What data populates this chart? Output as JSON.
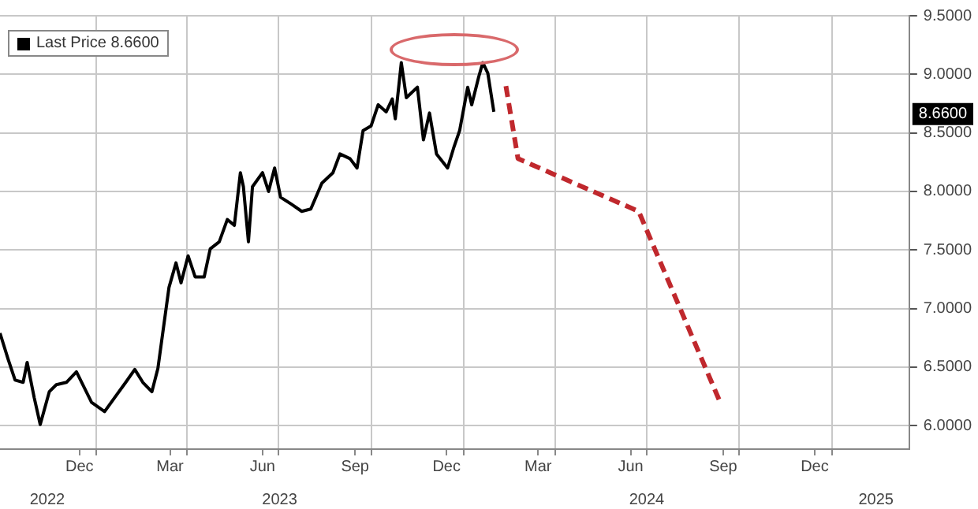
{
  "chart_data": {
    "type": "line",
    "xlim": [
      "2022-09-27",
      "2025-03-19"
    ],
    "xticks": [
      {
        "value": "2022-12-15",
        "label": "Dec"
      },
      {
        "value": "2023-01-01",
        "label": null
      },
      {
        "value": "2023-03-15",
        "label": "Mar"
      },
      {
        "value": "2023-04-01",
        "label": null
      },
      {
        "value": "2023-06-15",
        "label": "Jun"
      },
      {
        "value": "2023-07-01",
        "label": null
      },
      {
        "value": "2023-09-15",
        "label": "Sep"
      },
      {
        "value": "2023-10-01",
        "label": null
      },
      {
        "value": "2023-12-15",
        "label": "Dec"
      },
      {
        "value": "2024-01-01",
        "label": null
      },
      {
        "value": "2024-03-15",
        "label": "Mar"
      },
      {
        "value": "2024-04-01",
        "label": null
      },
      {
        "value": "2024-06-15",
        "label": "Jun"
      },
      {
        "value": "2024-07-01",
        "label": null
      },
      {
        "value": "2024-09-15",
        "label": "Sep"
      },
      {
        "value": "2024-10-01",
        "label": null
      },
      {
        "value": "2024-12-15",
        "label": "Dec"
      },
      {
        "value": "2025-01-01",
        "label": null
      }
    ],
    "x2lim": [
      "2022-09-27",
      "2025-03-19"
    ],
    "x2ticks": [
      {
        "value": "2022-11-13",
        "label": "2022"
      },
      {
        "value": "2023-07-02",
        "label": "2023"
      },
      {
        "value": "2024-07-01",
        "label": "2024"
      },
      {
        "value": "2025-02-14",
        "label": "2025"
      }
    ],
    "ylim": [
      5.8,
      9.5
    ],
    "yticks": [
      {
        "value": 6,
        "label": "6.0000"
      },
      {
        "value": 6.5,
        "label": "6.5000"
      },
      {
        "value": 7,
        "label": "7.0000"
      },
      {
        "value": 7.5,
        "label": "7.5000"
      },
      {
        "value": 8,
        "label": "8.0000"
      },
      {
        "value": 8.5,
        "label": "8.5000"
      },
      {
        "value": 9,
        "label": "9.0000"
      },
      {
        "value": 9.5,
        "label": "9.5000"
      }
    ],
    "grid": true,
    "legend": "top left",
    "annotations": [
      {
        "text": "8.6600",
        "y": 8.66
      }
    ],
    "series": [
      {
        "name": "Last Price 8.6600",
        "color": "#000000",
        "line_style": "solid",
        "x": [
          "2022-09-27",
          "2022-10-05",
          "2022-10-12",
          "2022-10-20",
          "2022-10-24",
          "2022-10-31",
          "2022-11-06",
          "2022-11-15",
          "2022-11-22",
          "2022-12-02",
          "2022-12-12",
          "2022-12-27",
          "2023-01-09",
          "2023-01-19",
          "2023-01-30",
          "2023-02-08",
          "2023-02-16",
          "2023-02-25",
          "2023-03-03",
          "2023-03-14",
          "2023-03-21",
          "2023-03-26",
          "2023-04-02",
          "2023-04-09",
          "2023-04-18",
          "2023-04-24",
          "2023-05-03",
          "2023-05-11",
          "2023-05-18",
          "2023-05-24",
          "2023-05-27",
          "2023-06-01",
          "2023-06-05",
          "2023-06-15",
          "2023-06-21",
          "2023-06-27",
          "2023-07-03",
          "2023-07-14",
          "2023-07-24",
          "2023-08-02",
          "2023-08-13",
          "2023-08-24",
          "2023-08-31",
          "2023-09-10",
          "2023-09-17",
          "2023-09-23",
          "2023-10-01",
          "2023-10-08",
          "2023-10-16",
          "2023-10-22",
          "2023-10-25",
          "2023-10-31",
          "2023-11-05",
          "2023-11-16",
          "2023-11-22",
          "2023-11-28",
          "2023-12-05",
          "2023-12-16",
          "2023-12-22",
          "2023-12-28",
          "2024-01-05",
          "2024-01-09",
          "2024-01-16",
          "2024-01-20",
          "2024-01-25",
          "2024-01-31"
        ],
        "values": [
          6.79,
          6.57,
          6.39,
          6.37,
          6.54,
          6.24,
          6.01,
          6.29,
          6.35,
          6.37,
          6.46,
          6.2,
          6.12,
          6.24,
          6.37,
          6.48,
          6.37,
          6.29,
          6.49,
          7.18,
          7.39,
          7.22,
          7.45,
          7.27,
          7.27,
          7.51,
          7.57,
          7.76,
          7.71,
          8.16,
          8.04,
          7.57,
          8.04,
          8.16,
          8.0,
          8.2,
          7.95,
          7.89,
          7.83,
          7.85,
          8.07,
          8.16,
          8.32,
          8.28,
          8.2,
          8.52,
          8.56,
          8.74,
          8.68,
          8.79,
          8.62,
          9.1,
          8.8,
          8.89,
          8.44,
          8.67,
          8.32,
          8.2,
          8.37,
          8.52,
          8.89,
          8.74,
          8.98,
          9.1,
          9.01,
          8.68
        ]
      },
      {
        "color": "#c0282d",
        "line_style": "dashed",
        "x": [
          "2024-02-12",
          "2024-02-24",
          "2024-06-23",
          "2024-09-12"
        ],
        "values": [
          8.9,
          8.28,
          7.83,
          6.2
        ]
      }
    ]
  }
}
